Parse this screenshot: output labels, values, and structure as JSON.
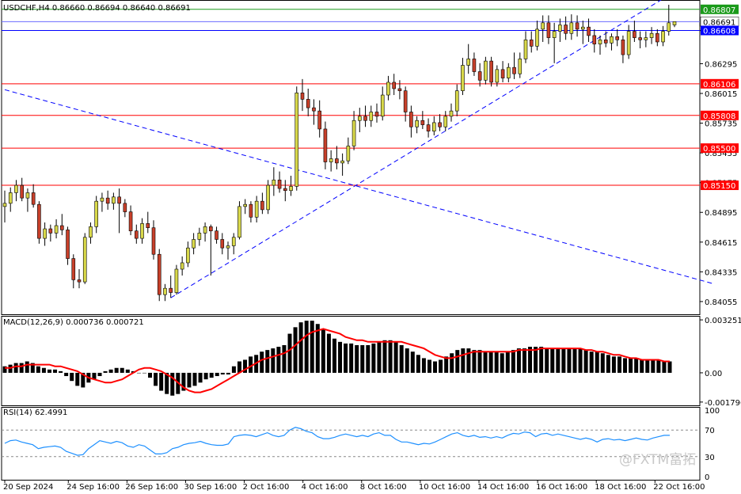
{
  "chart_data": {
    "type": "candlestick",
    "symbol_header": "USDCHF,H4  0.86660 0.86694 0.86640 0.86691",
    "price_axis": {
      "ticks": [
        "0.86607",
        "0.86295",
        "0.86015",
        "0.85735",
        "0.85455",
        "0.85175",
        "0.84895",
        "0.84615",
        "0.84335",
        "0.84055"
      ],
      "tick_values": [
        0.86607,
        0.86295,
        0.86015,
        0.85735,
        0.85455,
        0.85175,
        0.84895,
        0.84615,
        0.84335,
        0.84055
      ],
      "range": [
        0.8395,
        0.8688
      ]
    },
    "horizontal_levels": [
      {
        "label": "0.86807",
        "value": 0.86807,
        "color": "#1a9a1a"
      },
      {
        "label": "0.86691",
        "value": 0.86691,
        "color": "#6b6bff",
        "box": "#ffffff"
      },
      {
        "label": "0.86608",
        "value": 0.86608,
        "color": "#0000ff"
      },
      {
        "label": "0.86106",
        "value": 0.86106,
        "color": "#ff0000"
      },
      {
        "label": "0.85808",
        "value": 0.85808,
        "color": "#ff0000"
      },
      {
        "label": "0.85500",
        "value": 0.855,
        "color": "#ff0000"
      },
      {
        "label": "0.85150",
        "value": 0.8515,
        "color": "#ff0000"
      }
    ],
    "trendlines": [
      {
        "color": "#0000ff",
        "from": [
          0,
          0.8605
        ],
        "to": [
          124,
          0.8422
        ]
      },
      {
        "color": "#0000ff",
        "from": [
          29,
          0.8409
        ],
        "to": [
          116,
          0.8694
        ]
      }
    ],
    "candles": [
      [
        0.8495,
        0.851,
        0.848,
        0.8498
      ],
      [
        0.8498,
        0.8513,
        0.849,
        0.8508
      ],
      [
        0.8508,
        0.852,
        0.85,
        0.8515
      ],
      [
        0.8515,
        0.8522,
        0.85,
        0.8503
      ],
      [
        0.8503,
        0.8512,
        0.849,
        0.8508
      ],
      [
        0.8508,
        0.8516,
        0.8494,
        0.8497
      ],
      [
        0.8497,
        0.85,
        0.846,
        0.8465
      ],
      [
        0.8465,
        0.848,
        0.8458,
        0.8474
      ],
      [
        0.8474,
        0.8478,
        0.8462,
        0.847
      ],
      [
        0.847,
        0.8483,
        0.8465,
        0.8477
      ],
      [
        0.8477,
        0.8488,
        0.8468,
        0.8473
      ],
      [
        0.8473,
        0.8476,
        0.844,
        0.8446
      ],
      [
        0.8446,
        0.845,
        0.8418,
        0.8426
      ],
      [
        0.8426,
        0.8436,
        0.8418,
        0.8424
      ],
      [
        0.8424,
        0.847,
        0.8422,
        0.8466
      ],
      [
        0.8466,
        0.848,
        0.846,
        0.8476
      ],
      [
        0.8476,
        0.8505,
        0.847,
        0.85
      ],
      [
        0.85,
        0.8508,
        0.849,
        0.8503
      ],
      [
        0.8503,
        0.851,
        0.8492,
        0.8498
      ],
      [
        0.8498,
        0.8508,
        0.8492,
        0.8504
      ],
      [
        0.8504,
        0.8512,
        0.847,
        0.8498
      ],
      [
        0.8498,
        0.8502,
        0.8485,
        0.849
      ],
      [
        0.849,
        0.8496,
        0.8468,
        0.8472
      ],
      [
        0.8472,
        0.8478,
        0.846,
        0.8465
      ],
      [
        0.8465,
        0.8484,
        0.846,
        0.8479
      ],
      [
        0.8479,
        0.849,
        0.847,
        0.8475
      ],
      [
        0.8475,
        0.8482,
        0.8445,
        0.845
      ],
      [
        0.845,
        0.8455,
        0.8406,
        0.8412
      ],
      [
        0.8412,
        0.8422,
        0.8406,
        0.8418
      ],
      [
        0.8418,
        0.843,
        0.8409,
        0.8414
      ],
      [
        0.8414,
        0.844,
        0.8412,
        0.8436
      ],
      [
        0.8436,
        0.8448,
        0.843,
        0.8442
      ],
      [
        0.8442,
        0.8462,
        0.8438,
        0.8456
      ],
      [
        0.8456,
        0.847,
        0.845,
        0.8464
      ],
      [
        0.8464,
        0.8475,
        0.8458,
        0.847
      ],
      [
        0.847,
        0.848,
        0.8462,
        0.8476
      ],
      [
        0.8476,
        0.8478,
        0.843,
        0.8472
      ],
      [
        0.8472,
        0.8476,
        0.846,
        0.8464
      ],
      [
        0.8464,
        0.847,
        0.845,
        0.8456
      ],
      [
        0.8456,
        0.8462,
        0.8445,
        0.8458
      ],
      [
        0.8458,
        0.847,
        0.845,
        0.8466
      ],
      [
        0.8466,
        0.85,
        0.8464,
        0.8495
      ],
      [
        0.8495,
        0.8502,
        0.8488,
        0.8497
      ],
      [
        0.8497,
        0.85,
        0.848,
        0.8485
      ],
      [
        0.8485,
        0.8505,
        0.848,
        0.85
      ],
      [
        0.85,
        0.8508,
        0.8488,
        0.8492
      ],
      [
        0.8492,
        0.852,
        0.8488,
        0.8515
      ],
      [
        0.8515,
        0.8532,
        0.8505,
        0.852
      ],
      [
        0.852,
        0.8528,
        0.8508,
        0.8512
      ],
      [
        0.8512,
        0.852,
        0.85,
        0.851
      ],
      [
        0.851,
        0.8524,
        0.8505,
        0.8514
      ],
      [
        0.8514,
        0.8608,
        0.851,
        0.8602
      ],
      [
        0.8602,
        0.8615,
        0.8585,
        0.8596
      ],
      [
        0.8596,
        0.8606,
        0.858,
        0.8588
      ],
      [
        0.8588,
        0.8596,
        0.8572,
        0.8585
      ],
      [
        0.8585,
        0.8595,
        0.856,
        0.8568
      ],
      [
        0.8568,
        0.8575,
        0.853,
        0.8537
      ],
      [
        0.8537,
        0.8548,
        0.8528,
        0.854
      ],
      [
        0.854,
        0.8552,
        0.853,
        0.8536
      ],
      [
        0.8536,
        0.8545,
        0.8524,
        0.8538
      ],
      [
        0.8538,
        0.856,
        0.8535,
        0.8552
      ],
      [
        0.8552,
        0.8585,
        0.8548,
        0.8576
      ],
      [
        0.8576,
        0.8588,
        0.8565,
        0.858
      ],
      [
        0.858,
        0.859,
        0.857,
        0.8576
      ],
      [
        0.8576,
        0.859,
        0.857,
        0.8584
      ],
      [
        0.8584,
        0.8592,
        0.8574,
        0.858
      ],
      [
        0.858,
        0.8608,
        0.8576,
        0.86
      ],
      [
        0.86,
        0.8618,
        0.8595,
        0.8612
      ],
      [
        0.8612,
        0.862,
        0.86,
        0.8606
      ],
      [
        0.8606,
        0.8614,
        0.8596,
        0.8604
      ],
      [
        0.8604,
        0.8608,
        0.8575,
        0.8584
      ],
      [
        0.8584,
        0.859,
        0.856,
        0.857
      ],
      [
        0.857,
        0.858,
        0.8564,
        0.8576
      ],
      [
        0.8576,
        0.8585,
        0.8568,
        0.8572
      ],
      [
        0.8572,
        0.8578,
        0.856,
        0.8566
      ],
      [
        0.8566,
        0.858,
        0.8562,
        0.8574
      ],
      [
        0.8574,
        0.8582,
        0.8566,
        0.857
      ],
      [
        0.857,
        0.8585,
        0.8566,
        0.858
      ],
      [
        0.858,
        0.8592,
        0.8575,
        0.8585
      ],
      [
        0.8585,
        0.861,
        0.858,
        0.8604
      ],
      [
        0.8604,
        0.8635,
        0.86,
        0.8628
      ],
      [
        0.8628,
        0.8648,
        0.862,
        0.8634
      ],
      [
        0.8634,
        0.864,
        0.8618,
        0.8622
      ],
      [
        0.8622,
        0.863,
        0.8608,
        0.8614
      ],
      [
        0.8614,
        0.8636,
        0.861,
        0.8632
      ],
      [
        0.8632,
        0.8636,
        0.8608,
        0.8612
      ],
      [
        0.8612,
        0.8628,
        0.8608,
        0.8624
      ],
      [
        0.8624,
        0.8632,
        0.8612,
        0.8616
      ],
      [
        0.8616,
        0.863,
        0.8612,
        0.8626
      ],
      [
        0.8626,
        0.864,
        0.8615,
        0.862
      ],
      [
        0.862,
        0.864,
        0.8616,
        0.8634
      ],
      [
        0.8634,
        0.866,
        0.863,
        0.8652
      ],
      [
        0.8652,
        0.866,
        0.864,
        0.8646
      ],
      [
        0.8646,
        0.867,
        0.8642,
        0.8662
      ],
      [
        0.8662,
        0.8675,
        0.865,
        0.8668
      ],
      [
        0.8668,
        0.8675,
        0.8648,
        0.8654
      ],
      [
        0.8654,
        0.8668,
        0.863,
        0.866
      ],
      [
        0.866,
        0.8672,
        0.865,
        0.8666
      ],
      [
        0.8666,
        0.8674,
        0.8652,
        0.8658
      ],
      [
        0.8658,
        0.8676,
        0.8652,
        0.8668
      ],
      [
        0.8668,
        0.8675,
        0.8655,
        0.8662
      ],
      [
        0.8662,
        0.867,
        0.8648,
        0.8664
      ],
      [
        0.8664,
        0.8672,
        0.865,
        0.8656
      ],
      [
        0.8656,
        0.8662,
        0.864,
        0.8648
      ],
      [
        0.8648,
        0.8656,
        0.8638,
        0.8652
      ],
      [
        0.8652,
        0.866,
        0.8645,
        0.8649
      ],
      [
        0.8649,
        0.8658,
        0.8642,
        0.8655
      ],
      [
        0.8655,
        0.8662,
        0.8646,
        0.8652
      ],
      [
        0.8652,
        0.8656,
        0.863,
        0.8638
      ],
      [
        0.8638,
        0.8666,
        0.8634,
        0.866
      ],
      [
        0.866,
        0.867,
        0.865,
        0.8654
      ],
      [
        0.8654,
        0.866,
        0.8644,
        0.8652
      ],
      [
        0.8652,
        0.866,
        0.8645,
        0.8654
      ],
      [
        0.8654,
        0.8664,
        0.8648,
        0.8658
      ],
      [
        0.8658,
        0.8662,
        0.8646,
        0.865
      ],
      [
        0.865,
        0.8665,
        0.8646,
        0.866
      ],
      [
        0.866,
        0.8685,
        0.8656,
        0.8668
      ],
      [
        0.8666,
        0.86694,
        0.8664,
        0.86691
      ]
    ],
    "macd": {
      "header": "MACD(12,26,9) 0.000736 0.000721",
      "ticks": [
        "0.003251",
        "0.00",
        "-0.001796"
      ],
      "tick_values": [
        0.003251,
        0.0,
        -0.001796
      ],
      "range": [
        -0.0019,
        0.0034
      ],
      "histogram": [
        0.0004,
        0.0005,
        0.0006,
        0.0006,
        0.0007,
        0.0006,
        0.0004,
        0.0003,
        0.0002,
        0.0002,
        0.0001,
        -0.0002,
        -0.0005,
        -0.0008,
        -0.0009,
        -0.0006,
        -0.0004,
        -0.0002,
        0.0001,
        0.0002,
        0.0003,
        0.0003,
        0.0002,
        0.0001,
        0.0,
        0.0,
        -0.0003,
        -0.0008,
        -0.0011,
        -0.0013,
        -0.0014,
        -0.0013,
        -0.0011,
        -0.0009,
        -0.0008,
        -0.0006,
        -0.0004,
        -0.0003,
        -0.0002,
        -0.0001,
        -0.0001,
        0.0004,
        0.0007,
        0.0008,
        0.001,
        0.0011,
        0.0013,
        0.0014,
        0.0015,
        0.0016,
        0.0017,
        0.0024,
        0.0028,
        0.0031,
        0.0032,
        0.0032,
        0.003,
        0.0027,
        0.0024,
        0.0021,
        0.0019,
        0.0018,
        0.0018,
        0.0017,
        0.0017,
        0.0017,
        0.0018,
        0.0019,
        0.002,
        0.002,
        0.0019,
        0.0017,
        0.0015,
        0.0013,
        0.0011,
        0.0009,
        0.0008,
        0.0007,
        0.0008,
        0.001,
        0.0012,
        0.0014,
        0.0015,
        0.0015,
        0.0014,
        0.0014,
        0.0013,
        0.0013,
        0.0013,
        0.0012,
        0.0013,
        0.0014,
        0.0015,
        0.0015,
        0.0016,
        0.0016,
        0.0016,
        0.0015,
        0.0015,
        0.0015,
        0.0015,
        0.0015,
        0.0015,
        0.0015,
        0.0014,
        0.0013,
        0.0013,
        0.0012,
        0.0011,
        0.001,
        0.001,
        0.0009,
        0.0009,
        0.0009,
        0.0008,
        0.0008,
        0.0008,
        0.0008,
        0.0007,
        0.0007
      ],
      "signal": [
        0.0003,
        0.0003,
        0.0004,
        0.0004,
        0.0005,
        0.0005,
        0.0005,
        0.0005,
        0.0005,
        0.0004,
        0.0004,
        0.0003,
        0.0002,
        0.0001,
        -0.0001,
        -0.0003,
        -0.0004,
        -0.0005,
        -0.0006,
        -0.0006,
        -0.0005,
        -0.0004,
        -0.0002,
        0.0,
        0.0002,
        0.0003,
        0.0003,
        0.0002,
        0.0001,
        -0.0001,
        -0.0003,
        -0.0006,
        -0.0009,
        -0.0011,
        -0.0012,
        -0.0012,
        -0.0011,
        -0.001,
        -0.0008,
        -0.0006,
        -0.0004,
        -0.0002,
        0.0,
        0.0002,
        0.0004,
        0.0006,
        0.0008,
        0.0009,
        0.001,
        0.0011,
        0.0012,
        0.0014,
        0.0017,
        0.002,
        0.0023,
        0.0025,
        0.0026,
        0.0027,
        0.0026,
        0.0025,
        0.0024,
        0.0022,
        0.0021,
        0.002,
        0.002,
        0.0019,
        0.0019,
        0.0019,
        0.0019,
        0.0019,
        0.0019,
        0.0019,
        0.0018,
        0.0017,
        0.0016,
        0.0015,
        0.0013,
        0.0011,
        0.001,
        0.0009,
        0.0009,
        0.001,
        0.0011,
        0.0012,
        0.0013,
        0.0013,
        0.0013,
        0.0013,
        0.0013,
        0.0013,
        0.0013,
        0.0013,
        0.0014,
        0.0014,
        0.0014,
        0.0014,
        0.0015,
        0.0015,
        0.0015,
        0.0015,
        0.0015,
        0.0015,
        0.0015,
        0.0015,
        0.0014,
        0.0014,
        0.0013,
        0.0013,
        0.0012,
        0.0011,
        0.0011,
        0.001,
        0.0009,
        0.0009,
        0.0008,
        0.0008,
        0.0008,
        0.0008,
        0.0007,
        0.0007
      ]
    },
    "rsi": {
      "header": "RSI(14) 62.4991",
      "ticks": [
        "100",
        "70",
        "30",
        "0"
      ],
      "tick_values": [
        100,
        70,
        30,
        0
      ],
      "levels": [
        70,
        30
      ],
      "range": [
        0,
        100
      ],
      "values": [
        50,
        54,
        55,
        52,
        50,
        48,
        42,
        44,
        45,
        46,
        44,
        38,
        35,
        32,
        33,
        42,
        48,
        54,
        52,
        50,
        53,
        51,
        46,
        44,
        48,
        46,
        40,
        34,
        34,
        36,
        42,
        44,
        48,
        50,
        51,
        53,
        50,
        48,
        47,
        47,
        49,
        60,
        62,
        63,
        62,
        60,
        63,
        66,
        62,
        60,
        62,
        70,
        74,
        72,
        68,
        66,
        60,
        57,
        57,
        59,
        62,
        64,
        62,
        60,
        62,
        60,
        64,
        66,
        62,
        62,
        56,
        52,
        52,
        50,
        48,
        50,
        49,
        52,
        56,
        60,
        64,
        66,
        62,
        60,
        62,
        59,
        60,
        58,
        60,
        58,
        62,
        65,
        64,
        67,
        66,
        60,
        64,
        65,
        62,
        64,
        62,
        60,
        58,
        56,
        58,
        56,
        52,
        56,
        57,
        55,
        56,
        54,
        56,
        58,
        56,
        55,
        58,
        60,
        62,
        62
      ]
    },
    "x_ticks": [
      {
        "label": "20 Sep 2024",
        "index": 0
      },
      {
        "label": "24 Sep 16:00",
        "index": 13
      },
      {
        "label": "26 Sep 16:00",
        "index": 25
      },
      {
        "label": "30 Sep 16:00",
        "index": 37
      },
      {
        "label": "2 Oct 16:00",
        "index": 49
      },
      {
        "label": "4 Oct 16:00",
        "index": 61
      },
      {
        "label": "8 Oct 16:00",
        "index": 73
      },
      {
        "label": "10 Oct 16:00",
        "index": 85
      },
      {
        "label": "14 Oct 16:00",
        "index": 97
      },
      {
        "label": "16 Oct 16:00",
        "index": 109
      },
      {
        "label": "18 Oct 16:00",
        "index": 121
      },
      {
        "label": "22 Oct 16:00",
        "index": 133
      }
    ],
    "colors": {
      "bull": "#d8d84a",
      "bear": "#c8402a",
      "macd_hist": "#000000",
      "macd_signal": "#ff0000",
      "rsi_line": "#1e90ff"
    }
  },
  "watermark": "@FXTM富拓"
}
